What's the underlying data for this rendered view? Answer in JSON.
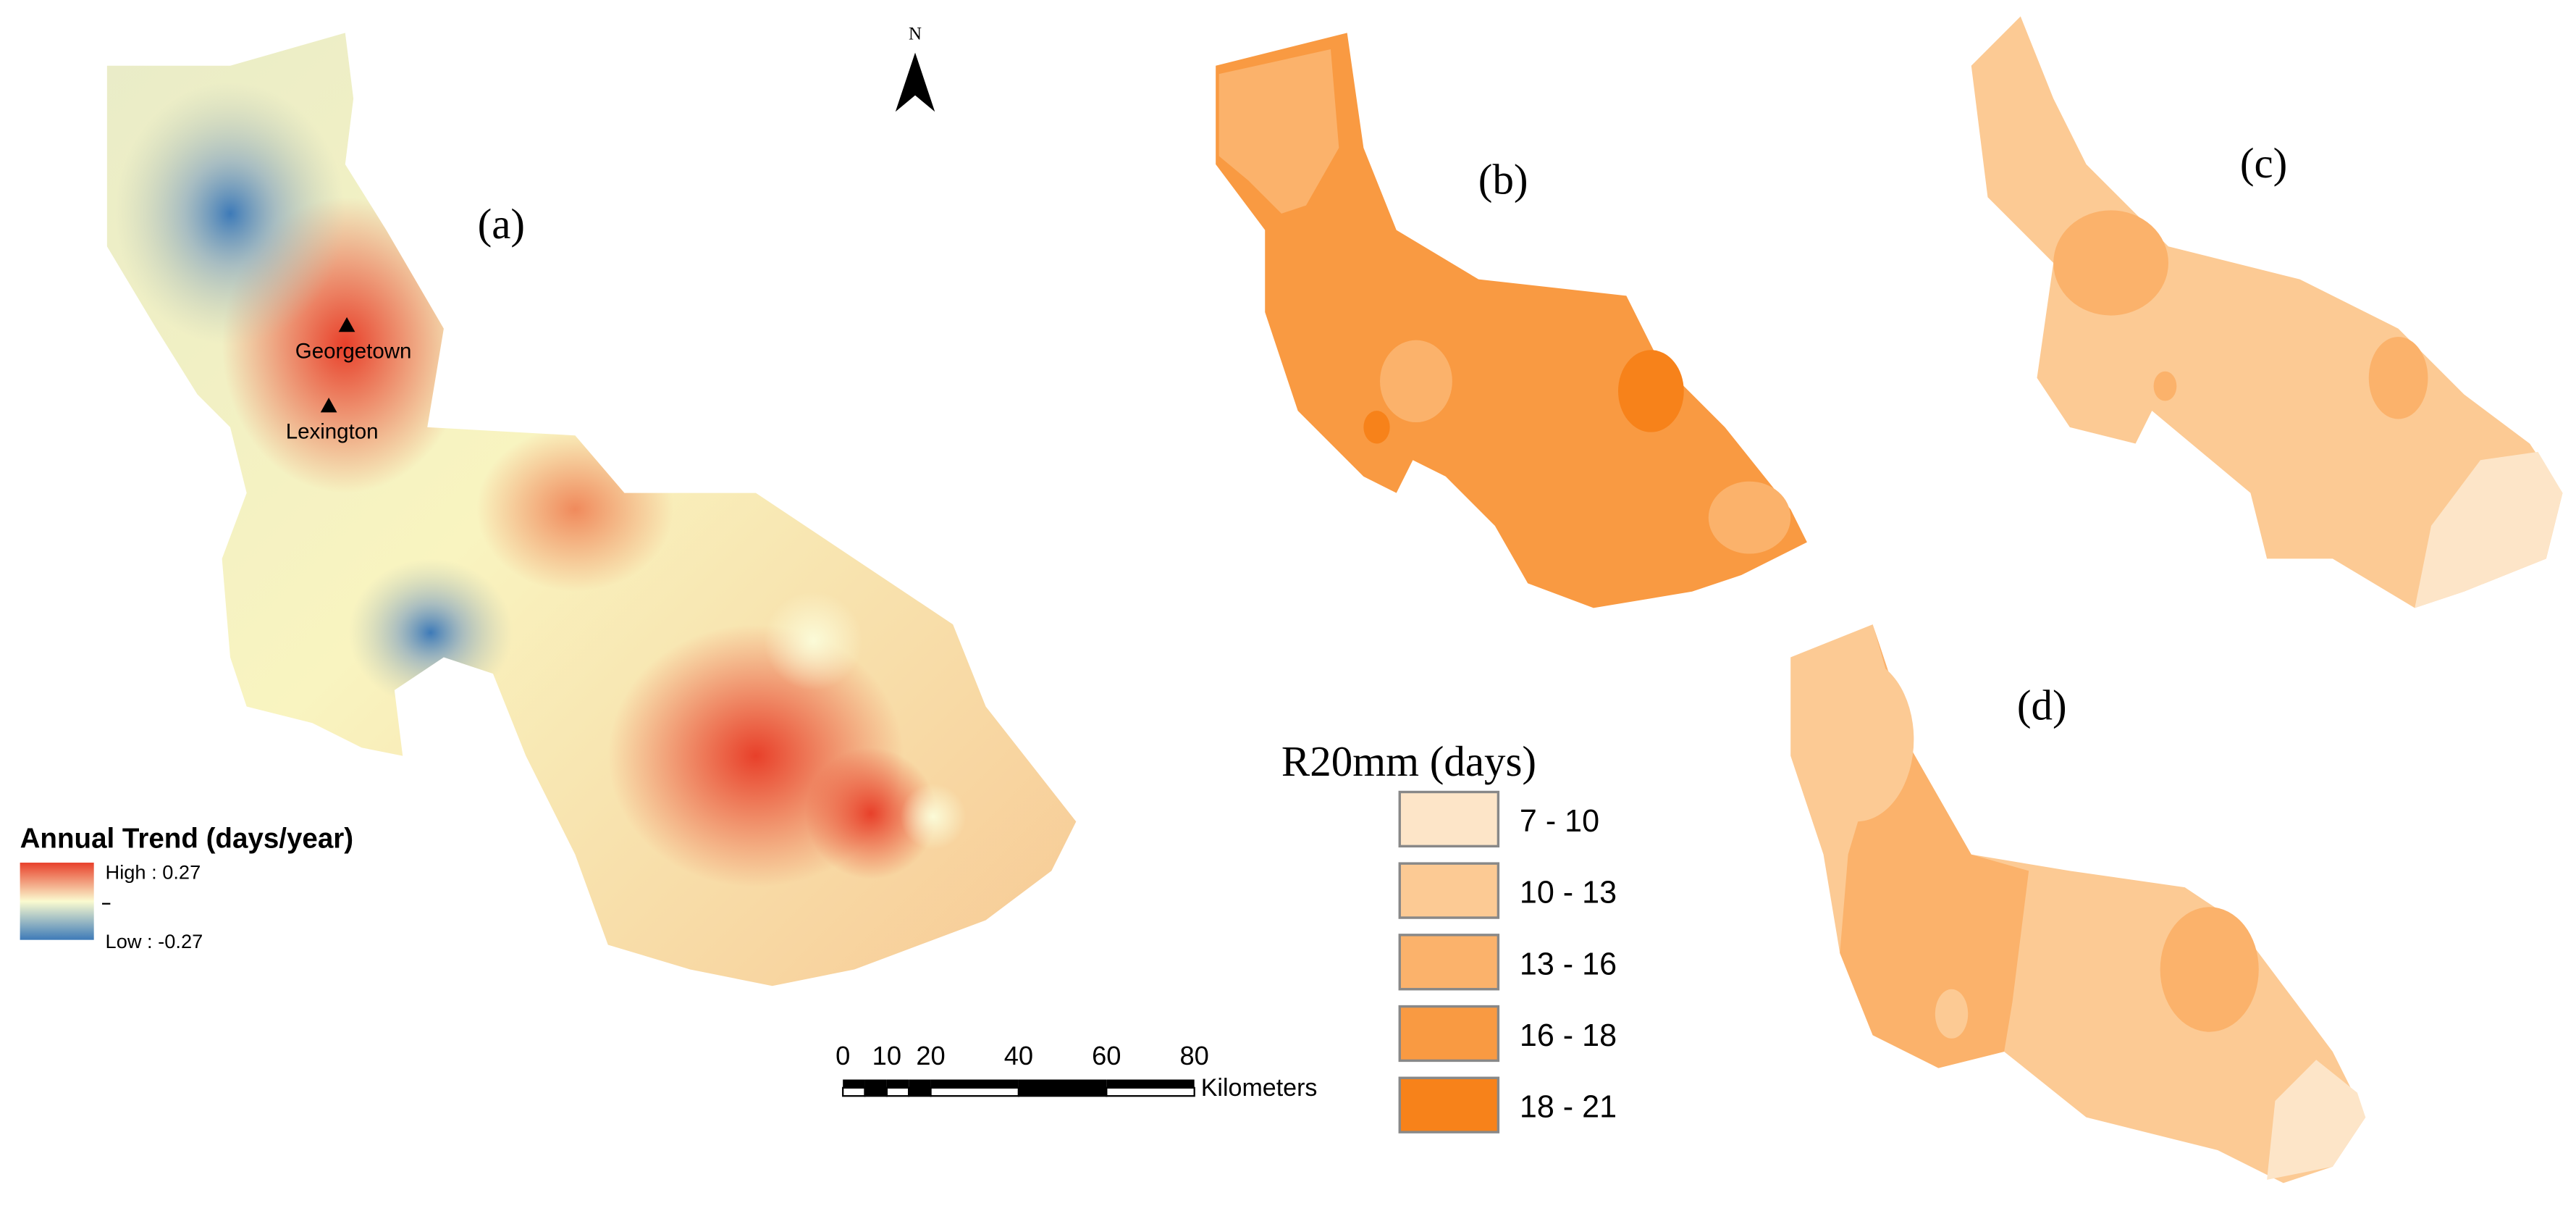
{
  "panels": [
    "(a)",
    "(b)",
    "(c)",
    "(d)"
  ],
  "north": "N",
  "cities": [
    {
      "label": "Georgetown"
    },
    {
      "label": "Lexington"
    }
  ],
  "trend_legend": {
    "title": "Annual Trend (days/year)",
    "high": "High : 0.27",
    "low": "Low : -0.27"
  },
  "class_legend": {
    "title": "R20mm (days)",
    "classes": [
      {
        "label": "7 - 10",
        "color": "#fde5c8"
      },
      {
        "label": "10 - 13",
        "color": "#fcca94"
      },
      {
        "label": "13 - 16",
        "color": "#fbb26b"
      },
      {
        "label": "16 - 18",
        "color": "#f99a42"
      },
      {
        "label": "18 - 21",
        "color": "#f7821a"
      }
    ]
  },
  "scale_bar": {
    "ticks": [
      "0",
      "10",
      "20",
      "40",
      "60",
      "80"
    ],
    "unit": "Kilometers"
  }
}
